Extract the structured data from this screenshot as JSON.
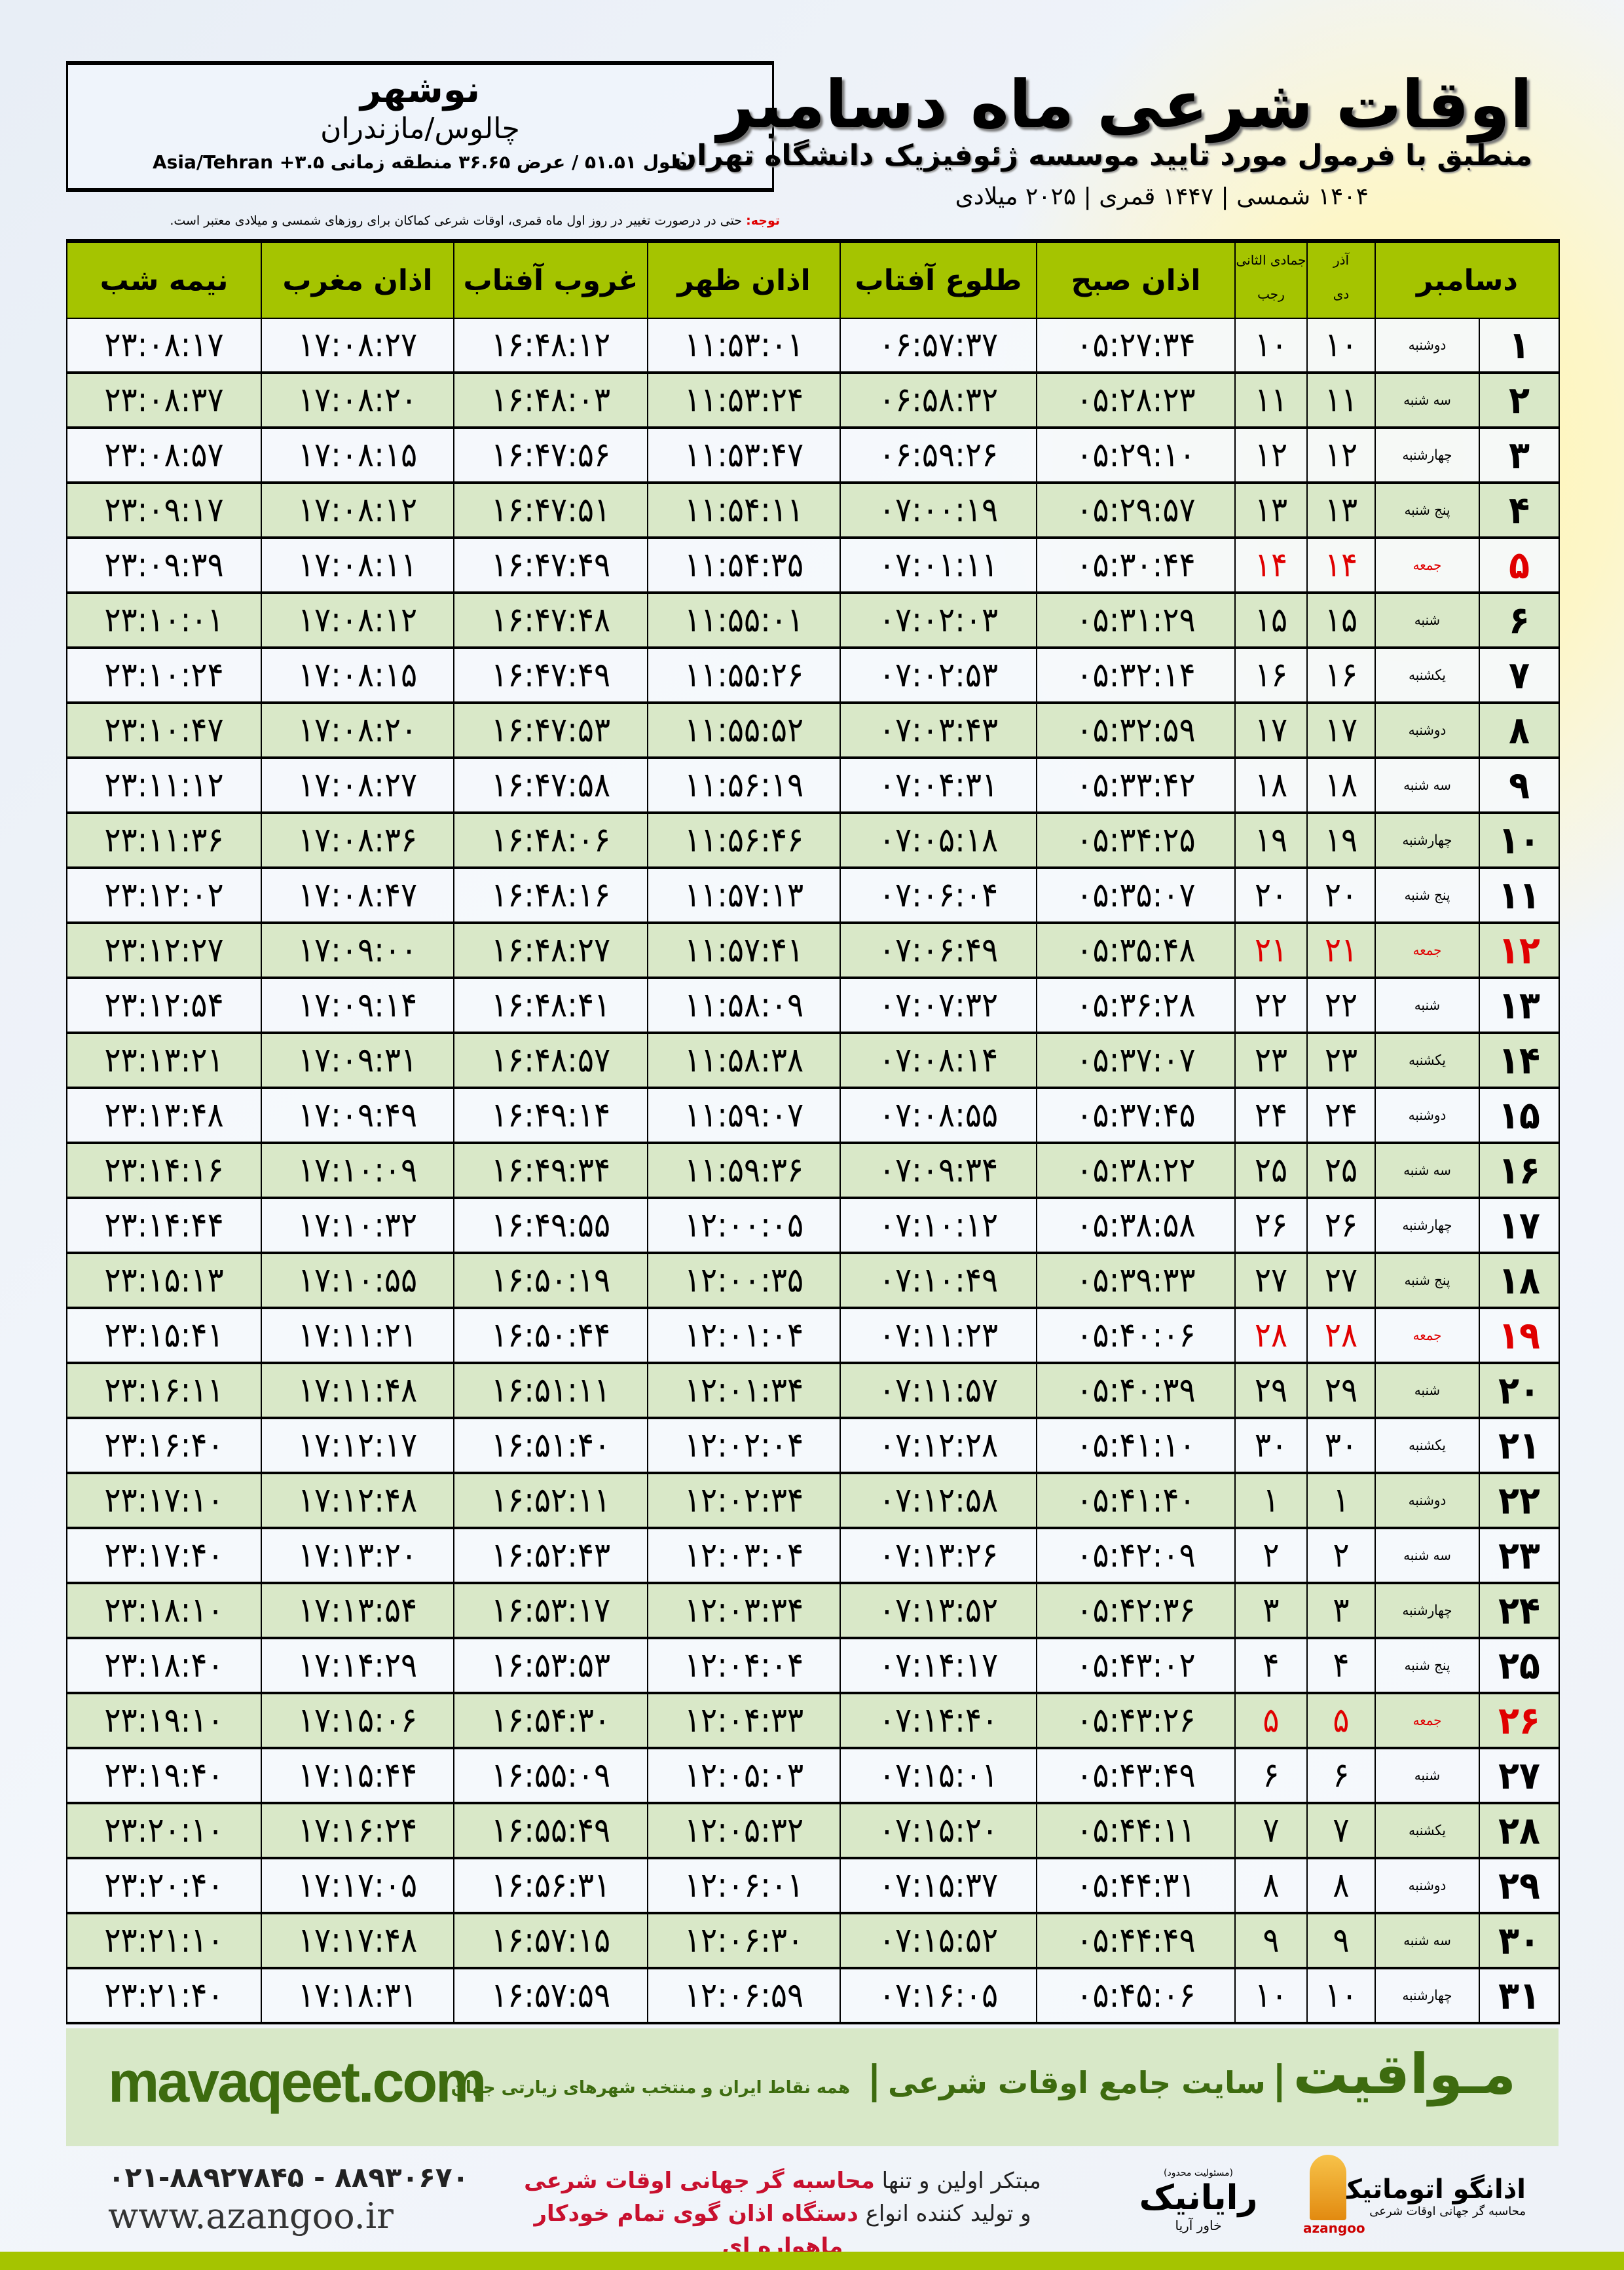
{
  "location": {
    "city": "نوشهر",
    "province": "چالوس/مازندران",
    "coords": "طول ۵۱.۵۱ / عرض ۳۶.۶۵ منطقه زمانی ۳.۵+ Asia/Tehran"
  },
  "header": {
    "title": "اوقات شرعی ماه دسامبر",
    "subtitle": "منطبق با فرمول مورد تایید موسسه ژئوفیزیک دانشگاه تهران",
    "years": "۱۴۰۴ شمسی | ۱۴۴۷ قمری | ۲۰۲۵ میلادی"
  },
  "note": {
    "label": "توجه:",
    "text": " حتی در درصورت تغییر در روز اول ماه قمری، اوقات شرعی کماکان برای روزهای شمسی و میلادی معتبر است."
  },
  "colors": {
    "header_green": "#a5c400",
    "row_green": "#d9e8c8",
    "holiday_red": "#e00000",
    "brand_green": "#3d6b0f"
  },
  "table": {
    "headers": {
      "month": "دسامبر",
      "azar": "آذر",
      "dey": "دی",
      "jumada": "جمادی الثانی",
      "rajab": "رجب",
      "fajr": "اذان صبح",
      "sunrise": "طلوع آفتاب",
      "dhuhr": "اذان ظهر",
      "sunset": "غروب آفتاب",
      "maghrib": "اذان مغرب",
      "midnight": "نیمه شب"
    },
    "rows": [
      {
        "day": "۱",
        "weekday": "دوشنبه",
        "dey": "۱۰",
        "rajab": "۱۰",
        "fajr": "۰۵:۲۷:۳۴",
        "sunrise": "۰۶:۵۷:۳۷",
        "dhuhr": "۱۱:۵۳:۰۱",
        "sunset": "۱۶:۴۸:۱۲",
        "maghrib": "۱۷:۰۸:۲۷",
        "midnight": "۲۳:۰۸:۱۷",
        "holiday": false
      },
      {
        "day": "۲",
        "weekday": "سه شنبه",
        "dey": "۱۱",
        "rajab": "۱۱",
        "fajr": "۰۵:۲۸:۲۳",
        "sunrise": "۰۶:۵۸:۳۲",
        "dhuhr": "۱۱:۵۳:۲۴",
        "sunset": "۱۶:۴۸:۰۳",
        "maghrib": "۱۷:۰۸:۲۰",
        "midnight": "۲۳:۰۸:۳۷",
        "holiday": false
      },
      {
        "day": "۳",
        "weekday": "چهارشنبه",
        "dey": "۱۲",
        "rajab": "۱۲",
        "fajr": "۰۵:۲۹:۱۰",
        "sunrise": "۰۶:۵۹:۲۶",
        "dhuhr": "۱۱:۵۳:۴۷",
        "sunset": "۱۶:۴۷:۵۶",
        "maghrib": "۱۷:۰۸:۱۵",
        "midnight": "۲۳:۰۸:۵۷",
        "holiday": false
      },
      {
        "day": "۴",
        "weekday": "پنج شنبه",
        "dey": "۱۳",
        "rajab": "۱۳",
        "fajr": "۰۵:۲۹:۵۷",
        "sunrise": "۰۷:۰۰:۱۹",
        "dhuhr": "۱۱:۵۴:۱۱",
        "sunset": "۱۶:۴۷:۵۱",
        "maghrib": "۱۷:۰۸:۱۲",
        "midnight": "۲۳:۰۹:۱۷",
        "holiday": false
      },
      {
        "day": "۵",
        "weekday": "جمعه",
        "dey": "۱۴",
        "rajab": "۱۴",
        "fajr": "۰۵:۳۰:۴۴",
        "sunrise": "۰۷:۰۱:۱۱",
        "dhuhr": "۱۱:۵۴:۳۵",
        "sunset": "۱۶:۴۷:۴۹",
        "maghrib": "۱۷:۰۸:۱۱",
        "midnight": "۲۳:۰۹:۳۹",
        "holiday": true
      },
      {
        "day": "۶",
        "weekday": "شنبه",
        "dey": "۱۵",
        "rajab": "۱۵",
        "fajr": "۰۵:۳۱:۲۹",
        "sunrise": "۰۷:۰۲:۰۳",
        "dhuhr": "۱۱:۵۵:۰۱",
        "sunset": "۱۶:۴۷:۴۸",
        "maghrib": "۱۷:۰۸:۱۲",
        "midnight": "۲۳:۱۰:۰۱",
        "holiday": false
      },
      {
        "day": "۷",
        "weekday": "یکشنبه",
        "dey": "۱۶",
        "rajab": "۱۶",
        "fajr": "۰۵:۳۲:۱۴",
        "sunrise": "۰۷:۰۲:۵۳",
        "dhuhr": "۱۱:۵۵:۲۶",
        "sunset": "۱۶:۴۷:۴۹",
        "maghrib": "۱۷:۰۸:۱۵",
        "midnight": "۲۳:۱۰:۲۴",
        "holiday": false
      },
      {
        "day": "۸",
        "weekday": "دوشنبه",
        "dey": "۱۷",
        "rajab": "۱۷",
        "fajr": "۰۵:۳۲:۵۹",
        "sunrise": "۰۷:۰۳:۴۳",
        "dhuhr": "۱۱:۵۵:۵۲",
        "sunset": "۱۶:۴۷:۵۳",
        "maghrib": "۱۷:۰۸:۲۰",
        "midnight": "۲۳:۱۰:۴۷",
        "holiday": false
      },
      {
        "day": "۹",
        "weekday": "سه شنبه",
        "dey": "۱۸",
        "rajab": "۱۸",
        "fajr": "۰۵:۳۳:۴۲",
        "sunrise": "۰۷:۰۴:۳۱",
        "dhuhr": "۱۱:۵۶:۱۹",
        "sunset": "۱۶:۴۷:۵۸",
        "maghrib": "۱۷:۰۸:۲۷",
        "midnight": "۲۳:۱۱:۱۲",
        "holiday": false
      },
      {
        "day": "۱۰",
        "weekday": "چهارشنبه",
        "dey": "۱۹",
        "rajab": "۱۹",
        "fajr": "۰۵:۳۴:۲۵",
        "sunrise": "۰۷:۰۵:۱۸",
        "dhuhr": "۱۱:۵۶:۴۶",
        "sunset": "۱۶:۴۸:۰۶",
        "maghrib": "۱۷:۰۸:۳۶",
        "midnight": "۲۳:۱۱:۳۶",
        "holiday": false
      },
      {
        "day": "۱۱",
        "weekday": "پنج شنبه",
        "dey": "۲۰",
        "rajab": "۲۰",
        "fajr": "۰۵:۳۵:۰۷",
        "sunrise": "۰۷:۰۶:۰۴",
        "dhuhr": "۱۱:۵۷:۱۳",
        "sunset": "۱۶:۴۸:۱۶",
        "maghrib": "۱۷:۰۸:۴۷",
        "midnight": "۲۳:۱۲:۰۲",
        "holiday": false
      },
      {
        "day": "۱۲",
        "weekday": "جمعه",
        "dey": "۲۱",
        "rajab": "۲۱",
        "fajr": "۰۵:۳۵:۴۸",
        "sunrise": "۰۷:۰۶:۴۹",
        "dhuhr": "۱۱:۵۷:۴۱",
        "sunset": "۱۶:۴۸:۲۷",
        "maghrib": "۱۷:۰۹:۰۰",
        "midnight": "۲۳:۱۲:۲۷",
        "holiday": true
      },
      {
        "day": "۱۳",
        "weekday": "شنبه",
        "dey": "۲۲",
        "rajab": "۲۲",
        "fajr": "۰۵:۳۶:۲۸",
        "sunrise": "۰۷:۰۷:۳۲",
        "dhuhr": "۱۱:۵۸:۰۹",
        "sunset": "۱۶:۴۸:۴۱",
        "maghrib": "۱۷:۰۹:۱۴",
        "midnight": "۲۳:۱۲:۵۴",
        "holiday": false
      },
      {
        "day": "۱۴",
        "weekday": "یکشنبه",
        "dey": "۲۳",
        "rajab": "۲۳",
        "fajr": "۰۵:۳۷:۰۷",
        "sunrise": "۰۷:۰۸:۱۴",
        "dhuhr": "۱۱:۵۸:۳۸",
        "sunset": "۱۶:۴۸:۵۷",
        "maghrib": "۱۷:۰۹:۳۱",
        "midnight": "۲۳:۱۳:۲۱",
        "holiday": false
      },
      {
        "day": "۱۵",
        "weekday": "دوشنبه",
        "dey": "۲۴",
        "rajab": "۲۴",
        "fajr": "۰۵:۳۷:۴۵",
        "sunrise": "۰۷:۰۸:۵۵",
        "dhuhr": "۱۱:۵۹:۰۷",
        "sunset": "۱۶:۴۹:۱۴",
        "maghrib": "۱۷:۰۹:۴۹",
        "midnight": "۲۳:۱۳:۴۸",
        "holiday": false
      },
      {
        "day": "۱۶",
        "weekday": "سه شنبه",
        "dey": "۲۵",
        "rajab": "۲۵",
        "fajr": "۰۵:۳۸:۲۲",
        "sunrise": "۰۷:۰۹:۳۴",
        "dhuhr": "۱۱:۵۹:۳۶",
        "sunset": "۱۶:۴۹:۳۴",
        "maghrib": "۱۷:۱۰:۰۹",
        "midnight": "۲۳:۱۴:۱۶",
        "holiday": false
      },
      {
        "day": "۱۷",
        "weekday": "چهارشنبه",
        "dey": "۲۶",
        "rajab": "۲۶",
        "fajr": "۰۵:۳۸:۵۸",
        "sunrise": "۰۷:۱۰:۱۲",
        "dhuhr": "۱۲:۰۰:۰۵",
        "sunset": "۱۶:۴۹:۵۵",
        "maghrib": "۱۷:۱۰:۳۲",
        "midnight": "۲۳:۱۴:۴۴",
        "holiday": false
      },
      {
        "day": "۱۸",
        "weekday": "پنج شنبه",
        "dey": "۲۷",
        "rajab": "۲۷",
        "fajr": "۰۵:۳۹:۳۳",
        "sunrise": "۰۷:۱۰:۴۹",
        "dhuhr": "۱۲:۰۰:۳۵",
        "sunset": "۱۶:۵۰:۱۹",
        "maghrib": "۱۷:۱۰:۵۵",
        "midnight": "۲۳:۱۵:۱۳",
        "holiday": false
      },
      {
        "day": "۱۹",
        "weekday": "جمعه",
        "dey": "۲۸",
        "rajab": "۲۸",
        "fajr": "۰۵:۴۰:۰۶",
        "sunrise": "۰۷:۱۱:۲۳",
        "dhuhr": "۱۲:۰۱:۰۴",
        "sunset": "۱۶:۵۰:۴۴",
        "maghrib": "۱۷:۱۱:۲۱",
        "midnight": "۲۳:۱۵:۴۱",
        "holiday": true
      },
      {
        "day": "۲۰",
        "weekday": "شنبه",
        "dey": "۲۹",
        "rajab": "۲۹",
        "fajr": "۰۵:۴۰:۳۹",
        "sunrise": "۰۷:۱۱:۵۷",
        "dhuhr": "۱۲:۰۱:۳۴",
        "sunset": "۱۶:۵۱:۱۱",
        "maghrib": "۱۷:۱۱:۴۸",
        "midnight": "۲۳:۱۶:۱۱",
        "holiday": false
      },
      {
        "day": "۲۱",
        "weekday": "یکشنبه",
        "dey": "۳۰",
        "rajab": "۳۰",
        "fajr": "۰۵:۴۱:۱۰",
        "sunrise": "۰۷:۱۲:۲۸",
        "dhuhr": "۱۲:۰۲:۰۴",
        "sunset": "۱۶:۵۱:۴۰",
        "maghrib": "۱۷:۱۲:۱۷",
        "midnight": "۲۳:۱۶:۴۰",
        "holiday": false
      },
      {
        "day": "۲۲",
        "weekday": "دوشنبه",
        "dey": "۱",
        "rajab": "۱",
        "fajr": "۰۵:۴۱:۴۰",
        "sunrise": "۰۷:۱۲:۵۸",
        "dhuhr": "۱۲:۰۲:۳۴",
        "sunset": "۱۶:۵۲:۱۱",
        "maghrib": "۱۷:۱۲:۴۸",
        "midnight": "۲۳:۱۷:۱۰",
        "holiday": false
      },
      {
        "day": "۲۳",
        "weekday": "سه شنبه",
        "dey": "۲",
        "rajab": "۲",
        "fajr": "۰۵:۴۲:۰۹",
        "sunrise": "۰۷:۱۳:۲۶",
        "dhuhr": "۱۲:۰۳:۰۴",
        "sunset": "۱۶:۵۲:۴۳",
        "maghrib": "۱۷:۱۳:۲۰",
        "midnight": "۲۳:۱۷:۴۰",
        "holiday": false
      },
      {
        "day": "۲۴",
        "weekday": "چهارشنبه",
        "dey": "۳",
        "rajab": "۳",
        "fajr": "۰۵:۴۲:۳۶",
        "sunrise": "۰۷:۱۳:۵۲",
        "dhuhr": "۱۲:۰۳:۳۴",
        "sunset": "۱۶:۵۳:۱۷",
        "maghrib": "۱۷:۱۳:۵۴",
        "midnight": "۲۳:۱۸:۱۰",
        "holiday": false
      },
      {
        "day": "۲۵",
        "weekday": "پنج شنبه",
        "dey": "۴",
        "rajab": "۴",
        "fajr": "۰۵:۴۳:۰۲",
        "sunrise": "۰۷:۱۴:۱۷",
        "dhuhr": "۱۲:۰۴:۰۴",
        "sunset": "۱۶:۵۳:۵۳",
        "maghrib": "۱۷:۱۴:۲۹",
        "midnight": "۲۳:۱۸:۴۰",
        "holiday": false
      },
      {
        "day": "۲۶",
        "weekday": "جمعه",
        "dey": "۵",
        "rajab": "۵",
        "fajr": "۰۵:۴۳:۲۶",
        "sunrise": "۰۷:۱۴:۴۰",
        "dhuhr": "۱۲:۰۴:۳۳",
        "sunset": "۱۶:۵۴:۳۰",
        "maghrib": "۱۷:۱۵:۰۶",
        "midnight": "۲۳:۱۹:۱۰",
        "holiday": true
      },
      {
        "day": "۲۷",
        "weekday": "شنبه",
        "dey": "۶",
        "rajab": "۶",
        "fajr": "۰۵:۴۳:۴۹",
        "sunrise": "۰۷:۱۵:۰۱",
        "dhuhr": "۱۲:۰۵:۰۳",
        "sunset": "۱۶:۵۵:۰۹",
        "maghrib": "۱۷:۱۵:۴۴",
        "midnight": "۲۳:۱۹:۴۰",
        "holiday": false
      },
      {
        "day": "۲۸",
        "weekday": "یکشنبه",
        "dey": "۷",
        "rajab": "۷",
        "fajr": "۰۵:۴۴:۱۱",
        "sunrise": "۰۷:۱۵:۲۰",
        "dhuhr": "۱۲:۰۵:۳۲",
        "sunset": "۱۶:۵۵:۴۹",
        "maghrib": "۱۷:۱۶:۲۴",
        "midnight": "۲۳:۲۰:۱۰",
        "holiday": false
      },
      {
        "day": "۲۹",
        "weekday": "دوشنبه",
        "dey": "۸",
        "rajab": "۸",
        "fajr": "۰۵:۴۴:۳۱",
        "sunrise": "۰۷:۱۵:۳۷",
        "dhuhr": "۱۲:۰۶:۰۱",
        "sunset": "۱۶:۵۶:۳۱",
        "maghrib": "۱۷:۱۷:۰۵",
        "midnight": "۲۳:۲۰:۴۰",
        "holiday": false
      },
      {
        "day": "۳۰",
        "weekday": "سه شنبه",
        "dey": "۹",
        "rajab": "۹",
        "fajr": "۰۵:۴۴:۴۹",
        "sunrise": "۰۷:۱۵:۵۲",
        "dhuhr": "۱۲:۰۶:۳۰",
        "sunset": "۱۶:۵۷:۱۵",
        "maghrib": "۱۷:۱۷:۴۸",
        "midnight": "۲۳:۲۱:۱۰",
        "holiday": false
      },
      {
        "day": "۳۱",
        "weekday": "چهارشنبه",
        "dey": "۱۰",
        "rajab": "۱۰",
        "fajr": "۰۵:۴۵:۰۶",
        "sunrise": "۰۷:۱۶:۰۵",
        "dhuhr": "۱۲:۰۶:۵۹",
        "sunset": "۱۶:۵۷:۵۹",
        "maghrib": "۱۷:۱۸:۳۱",
        "midnight": "۲۳:۲۱:۴۰",
        "holiday": false
      }
    ]
  },
  "footer": {
    "brand": "مـواقیت",
    "separator": "|",
    "tagline": "سایت جامع اوقات شرعی",
    "tagline2": "همه نقاط ایران و منتخب شهرهای زیارتی جهان",
    "site": "mavaqeet.com",
    "phone": "۰۲۱-۸۸۹۲۷۸۴۵ - ۸۸۹۳۰۶۷۰",
    "web": "www.azangoo.ir",
    "slogan1_a": "مبتکر اولین و تنها ",
    "slogan1_b": "محاسبه گر جهانی اوقات شرعی",
    "slogan2_a": "و تولید کننده انواع ",
    "slogan2_b": "دستگاه اذان گوی تمام خودکار ماهواره ای",
    "rayanik_note": "(مسئولیت محدود)",
    "rayanik": "رایانیک",
    "rayanik_sub": "خاور آریا",
    "azangoo": "اذانگو اتوماتیک",
    "azangoo_sub": "محاسبه گر جهانی اوقات شرعی",
    "azangoo_en": "azangoo"
  }
}
